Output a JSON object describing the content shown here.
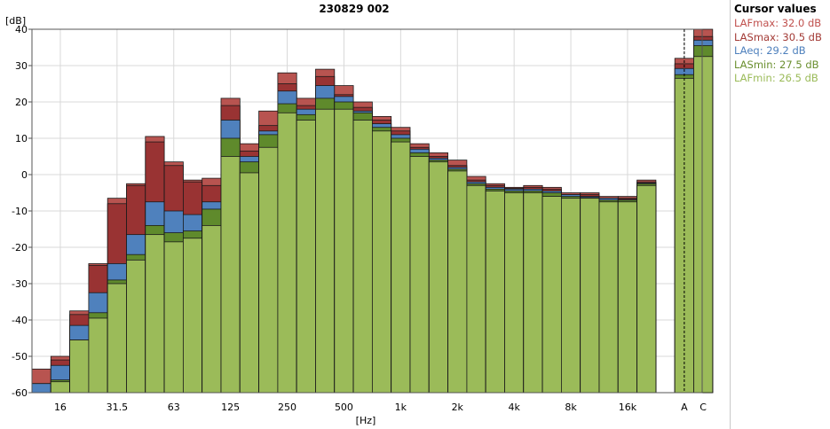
{
  "chart_data": {
    "type": "bar",
    "title": "230829 002",
    "ylabel": "[dB]",
    "xlabel": "[Hz]",
    "ylim": [
      -60,
      40
    ],
    "yticks": [
      40,
      30,
      20,
      10,
      0,
      -10,
      -20,
      -30,
      -40,
      -50,
      -60
    ],
    "ytick_labels": [
      "40",
      "30",
      "20",
      "10",
      "0",
      "-10",
      "-20",
      "-30",
      "-40",
      "-50",
      "-60"
    ],
    "categories": [
      "12.5",
      "16",
      "20",
      "25",
      "31.5",
      "40",
      "50",
      "63",
      "80",
      "100",
      "125",
      "160",
      "200",
      "250",
      "315",
      "400",
      "500",
      "630",
      "800",
      "1k",
      "1.25k",
      "1.6k",
      "2k",
      "2.5k",
      "3.15k",
      "4k",
      "5k",
      "6.3k",
      "8k",
      "10k",
      "12.5k",
      "16k",
      "20k",
      "A",
      "C"
    ],
    "xtick_labels": [
      "16",
      "31.5",
      "63",
      "125",
      "250",
      "500",
      "1k",
      "2k",
      "4k",
      "8k",
      "16k",
      "A",
      "C"
    ],
    "series": [
      {
        "name": "LAFmax",
        "color": "#b85450",
        "values": [
          -53.5,
          -50,
          -37.5,
          -24.5,
          -6.5,
          -2.5,
          10.5,
          3.5,
          -1.5,
          -1,
          21,
          8.5,
          17.5,
          28,
          21,
          29,
          24.5,
          20,
          16,
          13,
          8.5,
          6,
          4,
          -0.5,
          -2.5,
          -3.5,
          -3,
          -3.5,
          -5,
          -5,
          -6,
          -6,
          -1.5,
          32,
          40.5
        ]
      },
      {
        "name": "LASmax",
        "color": "#993333",
        "values": [
          -57.5,
          -51,
          -38.5,
          -25,
          -8,
          -3,
          9,
          2.5,
          -2,
          -3,
          19,
          6.5,
          13.5,
          25,
          19,
          27,
          22,
          18.5,
          15,
          12,
          7.5,
          5,
          2.5,
          -1.5,
          -3,
          -3.8,
          -3.5,
          -4,
          -5.5,
          -5.5,
          -6.5,
          -6.5,
          -2,
          30.5,
          38
        ]
      },
      {
        "name": "LAeq",
        "color": "#4f81bd",
        "values": [
          -57.5,
          -52.5,
          -41.5,
          -32.5,
          -24.5,
          -16.5,
          -7.5,
          -10,
          -11,
          -7.5,
          15,
          5,
          12,
          23,
          18,
          24.5,
          21.5,
          17.5,
          14,
          11,
          7,
          4.5,
          2,
          -2,
          -3.5,
          -4,
          -4,
          -4.5,
          -5.5,
          -6,
          -6.5,
          -6.8,
          -2.3,
          29.2,
          37
        ]
      },
      {
        "name": "LASmin",
        "color": "#5f8a2c",
        "values": [
          -60,
          -56.5,
          -45.5,
          -38,
          -29,
          -22,
          -14,
          -16,
          -15.5,
          -9.5,
          10,
          3.5,
          11,
          19.5,
          16.5,
          21,
          20,
          17,
          13,
          10,
          6,
          4,
          1.5,
          -2.5,
          -4,
          -4.5,
          -4.5,
          -5,
          -6,
          -6.3,
          -7,
          -7,
          -2.5,
          27.5,
          35.5
        ]
      },
      {
        "name": "LAFmin",
        "color": "#9bbb59",
        "values": [
          -60,
          -57,
          -45.5,
          -39.5,
          -30,
          -23.5,
          -16.5,
          -18.5,
          -17.5,
          -14,
          5,
          0.5,
          7.5,
          17,
          15,
          18,
          18,
          15,
          12,
          9,
          5,
          3.5,
          1,
          -3,
          -4.5,
          -5,
          -5,
          -6,
          -6.5,
          -6.5,
          -7.5,
          -7.5,
          -3,
          26.5,
          32.5
        ]
      }
    ]
  },
  "legend": {
    "title": "Cursor values",
    "items": [
      {
        "text": "LAFmax: 32.0 dB",
        "color": "#c0504d"
      },
      {
        "text": "LASmax: 30.5 dB",
        "color": "#a33b36"
      },
      {
        "text": "LAeq: 29.2 dB",
        "color": "#4f81bd"
      },
      {
        "text": "LASmin: 27.5 dB",
        "color": "#6a8f2f"
      },
      {
        "text": "LAFmin: 26.5 dB",
        "color": "#9bbb59"
      }
    ]
  }
}
